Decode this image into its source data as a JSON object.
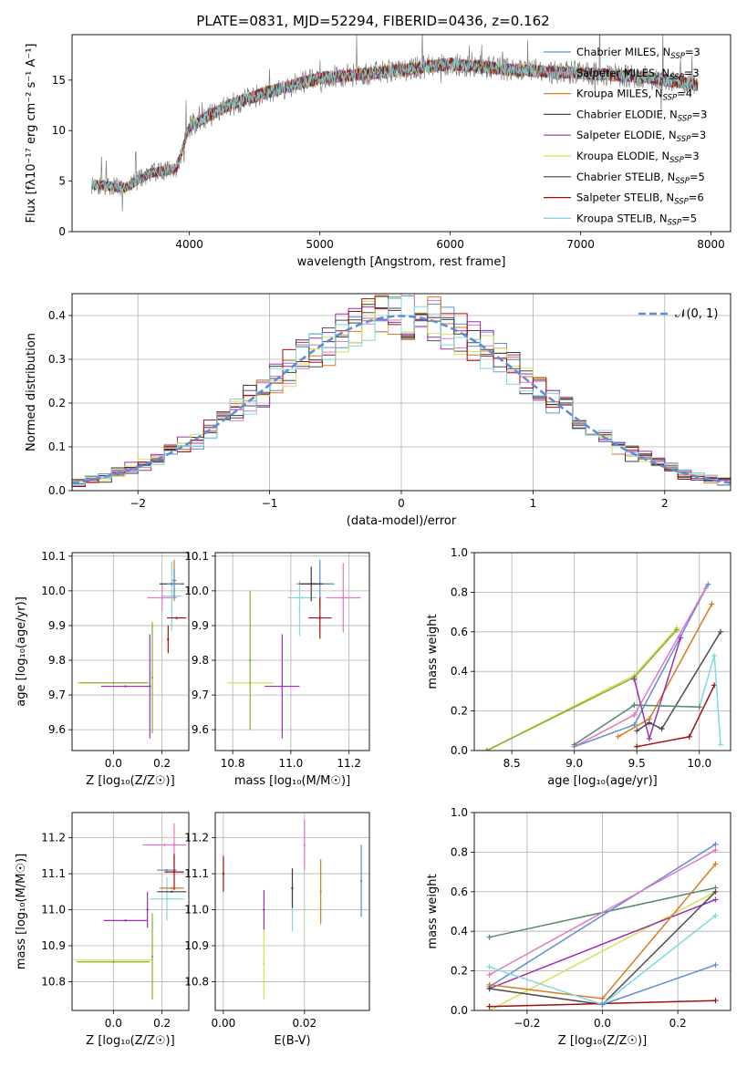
{
  "chart_data": [
    {
      "type": "line",
      "title": "PLATE=0831, MJD=52294, FIBERID=0436, z=0.162",
      "xlabel": "wavelength [Angstrom, rest frame]",
      "ylabel": "Flux [fλ10⁻¹⁷ erg cm⁻² s⁻¹ A⁻¹]",
      "xlim": [
        3100,
        8150
      ],
      "ylim": [
        0,
        19.5
      ],
      "xticks": [
        "4000",
        "5000",
        "6000",
        "7000",
        "8000"
      ],
      "yticks": [
        "0",
        "5",
        "10",
        "15"
      ],
      "grid": false,
      "legend_position": "upper-right",
      "spectrum_continuum": {
        "x": [
          3250,
          3500,
          3700,
          3900,
          4000,
          4300,
          4600,
          5000,
          5500,
          6000,
          6500,
          7000,
          7500,
          7900
        ],
        "y": [
          4.7,
          4.3,
          5.8,
          6.2,
          10.4,
          12.5,
          13.8,
          15.2,
          15.8,
          16.6,
          16.0,
          15.7,
          15.3,
          14.5
        ]
      },
      "series": [
        {
          "name": "Chabrier MILES, N",
          "sub": "SSP",
          "suffix": "=3",
          "color": "#5b8ed6"
        },
        {
          "name": "Salpeter MILES, N",
          "sub": "SSP",
          "suffix": "=3",
          "color": "#e377c2"
        },
        {
          "name": "Kroupa MILES, N",
          "sub": "SSP",
          "suffix": "=4",
          "color": "#d97b1e"
        },
        {
          "name": "Chabrier ELODIE, N",
          "sub": "SSP",
          "suffix": "=3",
          "color": "#4d4d4d"
        },
        {
          "name": "Salpeter ELODIE, N",
          "sub": "SSP",
          "suffix": "=3",
          "color": "#9b30b0"
        },
        {
          "name": "Kroupa ELODIE, N",
          "sub": "SSP",
          "suffix": "=3",
          "color": "#d4e157"
        },
        {
          "name": "Chabrier STELIB, N",
          "sub": "SSP",
          "suffix": "=5",
          "color": "#3c3c3c"
        },
        {
          "name": "Salpeter STELIB, N",
          "sub": "SSP",
          "suffix": "=6",
          "color": "#a01010"
        },
        {
          "name": "Kroupa STELIB, N",
          "sub": "SSP",
          "suffix": "=5",
          "color": "#7fd8e0"
        }
      ]
    },
    {
      "type": "line",
      "xlabel": "(data-model)/error",
      "ylabel": "Normed distribution",
      "xlim": [
        -2.5,
        2.5
      ],
      "ylim": [
        0,
        0.45
      ],
      "xticks": [
        "−2",
        "−1",
        "0",
        "1",
        "2"
      ],
      "yticks": [
        "0.0",
        "0.1",
        "0.2",
        "0.3",
        "0.4"
      ],
      "grid": true,
      "legend_position": "upper-right",
      "legend_label": "𝒩(0, 1)",
      "histogram_bin_width": 0.1
    },
    {
      "type": "scatter",
      "xlabel": "Z [log₁₀(Z/Z☉)]",
      "ylabel": "age  [log₁₀(age/yr)]",
      "xlim": [
        -0.17,
        0.31
      ],
      "ylim": [
        9.54,
        10.11
      ],
      "xticks": [
        "0.0",
        "0.2"
      ],
      "yticks": [
        "9.6",
        "9.7",
        "9.8",
        "9.9",
        "10.0",
        "10.1"
      ],
      "grid": true,
      "points": [
        {
          "x": 0.0,
          "y": 9.735,
          "xe": 0.15,
          "ye": 0.0,
          "color": "#d4e157"
        },
        {
          "x": 0.0,
          "y": 9.735,
          "xe": 0.14,
          "ye": 0.0,
          "color": "#80b030"
        },
        {
          "x": 0.05,
          "y": 9.725,
          "xe": 0.1,
          "ye": 0.0,
          "color": "#9b30b0"
        },
        {
          "x": 0.15,
          "y": 9.725,
          "xe": 0.0,
          "ye": 0.15,
          "color": "#9b30b0"
        },
        {
          "x": 0.16,
          "y": 9.75,
          "xe": 0.0,
          "ye": 0.16,
          "color": "#80b030"
        },
        {
          "x": 0.2,
          "y": 9.98,
          "xe": 0.06,
          "ye": 0.04,
          "color": "#e377c2"
        },
        {
          "x": 0.24,
          "y": 9.985,
          "xe": 0.04,
          "ye": 0.1,
          "color": "#7fd8e0"
        },
        {
          "x": 0.24,
          "y": 10.02,
          "xe": 0.05,
          "ye": 0.0,
          "color": "#3c3c3c"
        },
        {
          "x": 0.25,
          "y": 10.03,
          "xe": 0.01,
          "ye": 0.06,
          "color": "#d97b1e"
        },
        {
          "x": 0.25,
          "y": 10.02,
          "xe": 0.03,
          "ye": 0.04,
          "color": "#5b8ed6"
        },
        {
          "x": 0.26,
          "y": 9.922,
          "xe": 0.04,
          "ye": 0.0,
          "color": "#a01010"
        },
        {
          "x": 0.225,
          "y": 9.86,
          "xe": 0.0,
          "ye": 0.04,
          "color": "#a01010"
        }
      ]
    },
    {
      "type": "scatter",
      "xlabel": "mass [log₁₀(M/M☉)]",
      "ylabel": "",
      "xlim": [
        10.74,
        11.27
      ],
      "ylim": [
        9.54,
        10.11
      ],
      "xticks": [
        "10.8",
        "11.0",
        "11.2"
      ],
      "yticks": [
        "9.6",
        "9.7",
        "9.8",
        "9.9",
        "10.0",
        "10.1"
      ],
      "grid": true,
      "points": [
        {
          "x": 10.86,
          "y": 9.735,
          "xe": 0.08,
          "ye": 0.0,
          "color": "#d4e157"
        },
        {
          "x": 10.86,
          "y": 9.8,
          "xe": 0.0,
          "ye": 0.2,
          "color": "#80b030"
        },
        {
          "x": 10.97,
          "y": 9.725,
          "xe": 0.06,
          "ye": 0.15,
          "color": "#9b30b0"
        },
        {
          "x": 11.04,
          "y": 9.98,
          "xe": 0.05,
          "ye": 0.0,
          "color": "#7fd8e0"
        },
        {
          "x": 11.03,
          "y": 9.95,
          "xe": 0.0,
          "ye": 0.08,
          "color": "#7fd8e0"
        },
        {
          "x": 11.08,
          "y": 10.02,
          "xe": 0.06,
          "ye": 0.0,
          "color": "#d97b1e"
        },
        {
          "x": 11.1,
          "y": 10.02,
          "xe": 0.05,
          "ye": 0.07,
          "color": "#5b8ed6"
        },
        {
          "x": 11.07,
          "y": 10.02,
          "xe": 0.04,
          "ye": 0.05,
          "color": "#3c3c3c"
        },
        {
          "x": 11.18,
          "y": 9.98,
          "xe": 0.06,
          "ye": 0.1,
          "color": "#e377c2"
        },
        {
          "x": 11.1,
          "y": 9.922,
          "xe": 0.04,
          "ye": 0.06,
          "color": "#a01010"
        }
      ]
    },
    {
      "type": "line",
      "xlabel": "age  [log₁₀(age/yr)]",
      "ylabel": "mass weight",
      "xlim": [
        8.2,
        10.25
      ],
      "ylim": [
        0,
        1.0
      ],
      "xticks": [
        "8.5",
        "9.0",
        "9.5",
        "10.0"
      ],
      "yticks": [
        "0.0",
        "0.2",
        "0.4",
        "0.6",
        "0.8",
        "1.0"
      ],
      "grid": true,
      "series": [
        {
          "color": "#d4e157",
          "x": [
            8.3,
            9.48,
            9.82
          ],
          "y": [
            0.0,
            0.38,
            0.62
          ]
        },
        {
          "color": "#80b030",
          "x": [
            8.3,
            9.48,
            9.82
          ],
          "y": [
            0.0,
            0.37,
            0.61
          ]
        },
        {
          "color": "#5b8ed6",
          "x": [
            9.0,
            9.48,
            10.07
          ],
          "y": [
            0.02,
            0.13,
            0.84
          ]
        },
        {
          "color": "#e377c2",
          "x": [
            9.0,
            9.48,
            10.05
          ],
          "y": [
            0.02,
            0.18,
            0.82
          ]
        },
        {
          "color": "#d97b1e",
          "x": [
            9.35,
            9.6,
            10.1
          ],
          "y": [
            0.07,
            0.16,
            0.74
          ]
        },
        {
          "color": "#9b30b0",
          "x": [
            9.48,
            9.6,
            9.85
          ],
          "y": [
            0.36,
            0.06,
            0.57
          ]
        },
        {
          "color": "#4d4d4d",
          "x": [
            9.5,
            9.6,
            9.7,
            10.17
          ],
          "y": [
            0.1,
            0.14,
            0.11,
            0.6
          ]
        },
        {
          "color": "#a01010",
          "x": [
            9.5,
            9.92,
            10.12
          ],
          "y": [
            0.02,
            0.07,
            0.33
          ]
        },
        {
          "color": "#7fd8e0",
          "x": [
            9.0,
            9.48,
            10.0,
            10.12,
            10.17
          ],
          "y": [
            0.03,
            0.23,
            0.22,
            0.48,
            0.03
          ]
        },
        {
          "color": "#5a8a6a",
          "x": [
            9.0,
            9.48,
            10.0
          ],
          "y": [
            0.03,
            0.23,
            0.22
          ]
        }
      ]
    },
    {
      "type": "scatter",
      "xlabel": "Z [log₁₀(Z/Z☉)]",
      "ylabel": "mass [log₁₀(M/M☉)]",
      "xlim": [
        -0.17,
        0.31
      ],
      "ylim": [
        10.72,
        11.27
      ],
      "xticks": [
        "0.0",
        "0.2"
      ],
      "yticks": [
        "10.8",
        "10.9",
        "11.0",
        "11.1",
        "11.2"
      ],
      "grid": true,
      "points": [
        {
          "x": 0.0,
          "y": 10.86,
          "xe": 0.16,
          "ye": 0.0,
          "color": "#d4e157"
        },
        {
          "x": 0.0,
          "y": 10.855,
          "xe": 0.15,
          "ye": 0.0,
          "color": "#80b030"
        },
        {
          "x": 0.16,
          "y": 10.87,
          "xe": 0.0,
          "ye": 0.12,
          "color": "#80b030"
        },
        {
          "x": 0.05,
          "y": 10.97,
          "xe": 0.09,
          "ye": 0.0,
          "color": "#9b30b0"
        },
        {
          "x": 0.14,
          "y": 11.0,
          "xe": 0.0,
          "ye": 0.05,
          "color": "#9b30b0"
        },
        {
          "x": 0.21,
          "y": 11.18,
          "xe": 0.09,
          "ye": 0.0,
          "color": "#e377c2"
        },
        {
          "x": 0.25,
          "y": 11.18,
          "xe": 0.0,
          "ye": 0.06,
          "color": "#e377c2"
        },
        {
          "x": 0.22,
          "y": 11.03,
          "xe": 0.07,
          "ye": 0.06,
          "color": "#7fd8e0"
        },
        {
          "x": 0.24,
          "y": 11.06,
          "xe": 0.05,
          "ye": 0.0,
          "color": "#d97b1e"
        },
        {
          "x": 0.24,
          "y": 11.05,
          "xe": 0.06,
          "ye": 0.0,
          "color": "#3c3c3c"
        },
        {
          "x": 0.22,
          "y": 11.11,
          "xe": 0.04,
          "ye": 0.0,
          "color": "#5b8ed6"
        },
        {
          "x": 0.25,
          "y": 11.105,
          "xe": 0.04,
          "ye": 0.05,
          "color": "#a01010"
        }
      ]
    },
    {
      "type": "scatter",
      "xlabel": "E(B-V)",
      "ylabel": "",
      "xlim": [
        -0.002,
        0.036
      ],
      "ylim": [
        10.72,
        11.27
      ],
      "xticks": [
        "0.00",
        "0.02"
      ],
      "yticks": [
        "10.8",
        "10.9",
        "11.0",
        "11.1",
        "11.2"
      ],
      "grid": true,
      "points": [
        {
          "x": 0.0,
          "y": 11.1,
          "xe": 0.0,
          "ye": 0.05,
          "color": "#a01010"
        },
        {
          "x": 0.01,
          "y": 10.85,
          "xe": 0.0,
          "ye": 0.1,
          "color": "#d4e157"
        },
        {
          "x": 0.01,
          "y": 11.0,
          "xe": 0.0,
          "ye": 0.055,
          "color": "#9b30b0"
        },
        {
          "x": 0.017,
          "y": 11.0,
          "xe": 0.0,
          "ye": 0.06,
          "color": "#7fd8e0"
        },
        {
          "x": 0.017,
          "y": 11.06,
          "xe": 0.0,
          "ye": 0.055,
          "color": "#3c3c3c"
        },
        {
          "x": 0.02,
          "y": 11.18,
          "xe": 0.0,
          "ye": 0.07,
          "color": "#e377c2"
        },
        {
          "x": 0.024,
          "y": 11.05,
          "xe": 0.0,
          "ye": 0.09,
          "color": "#d97b1e"
        },
        {
          "x": 0.034,
          "y": 11.08,
          "xe": 0.0,
          "ye": 0.1,
          "color": "#5b8ed6"
        }
      ]
    },
    {
      "type": "line",
      "xlabel": "Z [log₁₀(Z/Z☉)]",
      "ylabel": "mass weight",
      "xlim": [
        -0.34,
        0.34
      ],
      "ylim": [
        0,
        1.0
      ],
      "xticks": [
        "−0.2",
        "0.0",
        "0.2"
      ],
      "yticks": [
        "0.0",
        "0.2",
        "0.4",
        "0.6",
        "0.8",
        "1.0"
      ],
      "grid": true,
      "series": [
        {
          "color": "#5a8a6a",
          "x": [
            -0.3,
            0.3
          ],
          "y": [
            0.37,
            0.62
          ]
        },
        {
          "color": "#d4e157",
          "x": [
            -0.3,
            0.3
          ],
          "y": [
            0.0,
            0.6
          ]
        },
        {
          "color": "#5b8ed6",
          "x": [
            -0.3,
            0.3
          ],
          "y": [
            0.12,
            0.84
          ]
        },
        {
          "color": "#e377c2",
          "x": [
            -0.3,
            0.3
          ],
          "y": [
            0.18,
            0.81
          ]
        },
        {
          "color": "#9b30b0",
          "x": [
            -0.3,
            0.3
          ],
          "y": [
            0.11,
            0.56
          ]
        },
        {
          "color": "#d97b1e",
          "x": [
            -0.3,
            0.0,
            0.3
          ],
          "y": [
            0.13,
            0.06,
            0.74
          ]
        },
        {
          "color": "#4d4d4d",
          "x": [
            -0.3,
            0.0,
            0.3
          ],
          "y": [
            0.11,
            0.03,
            0.6
          ]
        },
        {
          "color": "#a01010",
          "x": [
            -0.3,
            0.3
          ],
          "y": [
            0.02,
            0.05
          ]
        },
        {
          "color": "#7fd8e0",
          "x": [
            -0.3,
            0.0,
            0.3
          ],
          "y": [
            0.22,
            0.03,
            0.48
          ]
        },
        {
          "color": "#5b8ed6",
          "x": [
            0.0,
            0.3
          ],
          "y": [
            0.03,
            0.23
          ]
        }
      ]
    }
  ]
}
